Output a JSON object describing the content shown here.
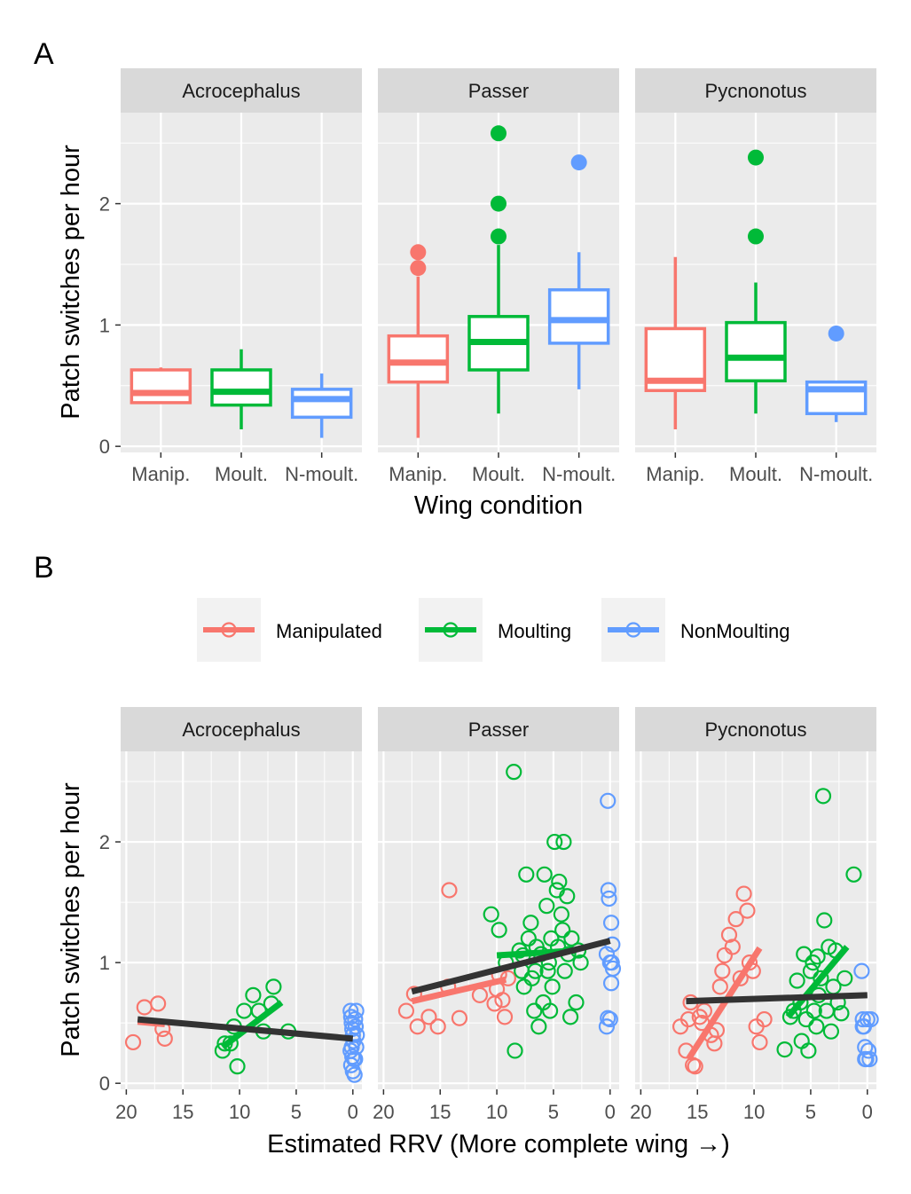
{
  "colors": {
    "Manipulated": "#F8766D",
    "Moulting": "#00BA38",
    "NonMoulting": "#619CFF",
    "overall": "#333333"
  },
  "tags": {
    "A": "A",
    "B": "B"
  },
  "facets": [
    "Acrocephalus",
    "Passer",
    "Pycnonotus"
  ],
  "legend": {
    "entries": [
      {
        "key": "Manipulated",
        "label": "Manipulated"
      },
      {
        "key": "Moulting",
        "label": "Moulting"
      },
      {
        "key": "NonMoulting",
        "label": "NonMoulting"
      }
    ]
  },
  "chart_data": [
    {
      "type": "box",
      "tag": "A",
      "xlabel": "Wing condition",
      "ylabel": "Patch switches per hour",
      "ylim": [
        -0.05,
        2.75
      ],
      "yticks": [
        0,
        1,
        2
      ],
      "categories": [
        "Manip.",
        "Moult.",
        "N-moult."
      ],
      "facets": [
        {
          "name": "Acrocephalus",
          "boxes": [
            {
              "group": "Manipulated",
              "min": 0.35,
              "q1": 0.36,
              "median": 0.44,
              "q3": 0.63,
              "max": 0.65,
              "outliers": []
            },
            {
              "group": "Moulting",
              "min": 0.14,
              "q1": 0.34,
              "median": 0.45,
              "q3": 0.63,
              "max": 0.8,
              "outliers": []
            },
            {
              "group": "NonMoulting",
              "min": 0.07,
              "q1": 0.24,
              "median": 0.39,
              "q3": 0.47,
              "max": 0.6,
              "outliers": []
            }
          ]
        },
        {
          "name": "Passer",
          "boxes": [
            {
              "group": "Manipulated",
              "min": 0.07,
              "q1": 0.53,
              "median": 0.69,
              "q3": 0.91,
              "max": 1.4,
              "outliers": [
                1.47,
                1.6
              ]
            },
            {
              "group": "Moulting",
              "min": 0.27,
              "q1": 0.63,
              "median": 0.86,
              "q3": 1.07,
              "max": 1.66,
              "outliers": [
                1.73,
                2.0,
                2.58
              ]
            },
            {
              "group": "NonMoulting",
              "min": 0.47,
              "q1": 0.85,
              "median": 1.04,
              "q3": 1.29,
              "max": 1.6,
              "outliers": [
                2.34
              ]
            }
          ]
        },
        {
          "name": "Pycnonotus",
          "boxes": [
            {
              "group": "Manipulated",
              "min": 0.14,
              "q1": 0.46,
              "median": 0.54,
              "q3": 0.97,
              "max": 1.56,
              "outliers": []
            },
            {
              "group": "Moulting",
              "min": 0.27,
              "q1": 0.54,
              "median": 0.73,
              "q3": 1.02,
              "max": 1.35,
              "outliers": [
                1.73,
                2.38
              ]
            },
            {
              "group": "NonMoulting",
              "min": 0.2,
              "q1": 0.27,
              "median": 0.47,
              "q3": 0.53,
              "max": 0.53,
              "outliers": [
                0.93
              ]
            }
          ]
        }
      ]
    },
    {
      "type": "scatter",
      "tag": "B",
      "xlabel": "Estimated RRV (More complete wing →)",
      "ylabel": "Patch switches per hour",
      "xlim": [
        20.5,
        -0.8
      ],
      "ylim": [
        -0.05,
        2.75
      ],
      "xticks": [
        20,
        15,
        10,
        5,
        0
      ],
      "yticks": [
        0,
        1,
        2
      ],
      "facets": [
        {
          "name": "Acrocephalus",
          "points": {
            "Manipulated": [
              [
                19.4,
                0.34
              ],
              [
                18.4,
                0.63
              ],
              [
                17.2,
                0.66
              ],
              [
                16.8,
                0.45
              ],
              [
                16.6,
                0.37
              ]
            ],
            "Moulting": [
              [
                11.5,
                0.27
              ],
              [
                11.3,
                0.33
              ],
              [
                10.8,
                0.33
              ],
              [
                10.5,
                0.47
              ],
              [
                10.2,
                0.14
              ],
              [
                9.6,
                0.6
              ],
              [
                8.8,
                0.73
              ],
              [
                8.3,
                0.6
              ],
              [
                7.9,
                0.43
              ],
              [
                7.2,
                0.66
              ],
              [
                7.0,
                0.8
              ],
              [
                5.7,
                0.43
              ]
            ],
            "NonMoulting": [
              [
                0.2,
                0.6
              ],
              [
                0.15,
                0.55
              ],
              [
                0.1,
                0.5
              ],
              [
                0.05,
                0.45
              ],
              [
                0.0,
                0.4
              ],
              [
                -0.05,
                0.35
              ],
              [
                0.1,
                0.3
              ],
              [
                0.2,
                0.27
              ],
              [
                0.05,
                0.22
              ],
              [
                -0.1,
                0.2
              ],
              [
                0.15,
                0.15
              ],
              [
                0.0,
                0.1
              ],
              [
                -0.15,
                0.07
              ],
              [
                -0.2,
                0.53
              ],
              [
                -0.3,
                0.6
              ],
              [
                -0.25,
                0.47
              ],
              [
                -0.35,
                0.4
              ],
              [
                -0.3,
                0.3
              ],
              [
                -0.2,
                0.2
              ]
            ]
          },
          "fits": {
            "Manipulated": [
              [
                19.0,
                0.51
              ],
              [
                16.6,
                0.49
              ]
            ],
            "Moulting": [
              [
                11.5,
                0.3
              ],
              [
                6.3,
                0.67
              ]
            ],
            "overall": [
              [
                19.0,
                0.53
              ],
              [
                0.0,
                0.37
              ]
            ]
          }
        },
        {
          "name": "Passer",
          "points": {
            "Manipulated": [
              [
                18.0,
                0.6
              ],
              [
                17.3,
                0.74
              ],
              [
                17.0,
                0.47
              ],
              [
                16.0,
                0.55
              ],
              [
                15.2,
                0.47
              ],
              [
                14.3,
                0.8
              ],
              [
                14.2,
                1.6
              ],
              [
                13.3,
                0.54
              ],
              [
                11.5,
                0.73
              ],
              [
                10.2,
                0.66
              ],
              [
                10.0,
                0.78
              ],
              [
                9.8,
                0.9
              ],
              [
                9.5,
                0.69
              ],
              [
                9.3,
                0.55
              ],
              [
                9.0,
                0.87
              ]
            ],
            "Moulting": [
              [
                10.5,
                1.4
              ],
              [
                9.8,
                1.27
              ],
              [
                9.2,
                1.0
              ],
              [
                8.5,
                2.58
              ],
              [
                8.4,
                0.27
              ],
              [
                8.0,
                1.1
              ],
              [
                7.8,
                0.93
              ],
              [
                7.6,
                0.8
              ],
              [
                7.4,
                1.73
              ],
              [
                7.2,
                1.2
              ],
              [
                7.0,
                1.33
              ],
              [
                6.9,
                0.87
              ],
              [
                6.7,
                0.6
              ],
              [
                6.5,
                1.13
              ],
              [
                6.3,
                0.47
              ],
              [
                6.1,
                1.07
              ],
              [
                5.9,
                0.67
              ],
              [
                5.8,
                1.73
              ],
              [
                5.6,
                1.47
              ],
              [
                5.5,
                0.93
              ],
              [
                5.4,
                1.0
              ],
              [
                5.2,
                1.2
              ],
              [
                5.1,
                0.8
              ],
              [
                4.9,
                2.0
              ],
              [
                4.7,
                1.6
              ],
              [
                4.6,
                1.13
              ],
              [
                4.5,
                1.67
              ],
              [
                4.3,
                1.4
              ],
              [
                4.2,
                1.27
              ],
              [
                4.1,
                2.0
              ],
              [
                4.0,
                0.93
              ],
              [
                3.8,
                1.55
              ],
              [
                3.7,
                1.07
              ],
              [
                3.5,
                0.55
              ],
              [
                3.4,
                1.2
              ],
              [
                3.0,
                0.67
              ],
              [
                2.8,
                1.1
              ],
              [
                2.6,
                1.0
              ],
              [
                6.6,
                0.93
              ],
              [
                7.7,
                1.06
              ],
              [
                5.3,
                0.6
              ]
            ],
            "NonMoulting": [
              [
                0.2,
                2.34
              ],
              [
                0.15,
                1.6
              ],
              [
                0.1,
                1.53
              ],
              [
                -0.1,
                1.33
              ],
              [
                -0.2,
                1.15
              ],
              [
                0.3,
                1.07
              ],
              [
                0.0,
                1.0
              ],
              [
                -0.25,
                0.95
              ],
              [
                -0.1,
                0.83
              ],
              [
                0.2,
                0.54
              ],
              [
                0.0,
                0.53
              ],
              [
                0.3,
                0.47
              ],
              [
                -0.15,
                1.0
              ]
            ]
          },
          "fits": {
            "Manipulated": [
              [
                17.5,
                0.68
              ],
              [
                9.2,
                0.86
              ]
            ],
            "Moulting": [
              [
                10.0,
                1.06
              ],
              [
                3.0,
                1.1
              ]
            ],
            "overall": [
              [
                17.5,
                0.76
              ],
              [
                0.0,
                1.18
              ]
            ]
          }
        },
        {
          "name": "Pycnonotus",
          "points": {
            "Manipulated": [
              [
                16.5,
                0.47
              ],
              [
                16.0,
                0.27
              ],
              [
                15.8,
                0.53
              ],
              [
                15.6,
                0.67
              ],
              [
                15.4,
                0.15
              ],
              [
                15.2,
                0.14
              ],
              [
                14.8,
                0.55
              ],
              [
                14.6,
                0.5
              ],
              [
                14.4,
                0.6
              ],
              [
                13.8,
                0.4
              ],
              [
                13.5,
                0.33
              ],
              [
                13.3,
                0.44
              ],
              [
                13.0,
                0.8
              ],
              [
                12.8,
                0.93
              ],
              [
                12.6,
                1.06
              ],
              [
                12.2,
                1.23
              ],
              [
                11.9,
                1.13
              ],
              [
                11.6,
                1.36
              ],
              [
                11.2,
                0.87
              ],
              [
                10.9,
                1.57
              ],
              [
                10.6,
                1.43
              ],
              [
                10.4,
                1.0
              ],
              [
                10.1,
                0.93
              ],
              [
                9.8,
                0.47
              ],
              [
                9.5,
                0.34
              ],
              [
                9.1,
                0.53
              ]
            ],
            "Moulting": [
              [
                7.3,
                0.28
              ],
              [
                6.8,
                0.55
              ],
              [
                6.5,
                0.6
              ],
              [
                6.2,
                0.85
              ],
              [
                5.9,
                0.67
              ],
              [
                5.6,
                1.07
              ],
              [
                5.4,
                0.53
              ],
              [
                5.2,
                0.27
              ],
              [
                5.0,
                0.93
              ],
              [
                4.8,
                1.0
              ],
              [
                4.7,
                0.6
              ],
              [
                4.5,
                0.47
              ],
              [
                4.3,
                0.73
              ],
              [
                4.1,
                0.87
              ],
              [
                3.9,
                2.38
              ],
              [
                3.8,
                1.35
              ],
              [
                3.6,
                0.6
              ],
              [
                3.4,
                1.13
              ],
              [
                3.2,
                0.43
              ],
              [
                3.0,
                0.8
              ],
              [
                2.8,
                1.1
              ],
              [
                2.6,
                0.67
              ],
              [
                2.3,
                0.58
              ],
              [
                2.0,
                0.87
              ],
              [
                1.2,
                1.73
              ],
              [
                5.8,
                0.35
              ],
              [
                4.4,
                1.05
              ]
            ],
            "NonMoulting": [
              [
                0.5,
                0.93
              ],
              [
                0.4,
                0.53
              ],
              [
                0.3,
                0.47
              ],
              [
                0.2,
                0.3
              ],
              [
                0.1,
                0.2
              ],
              [
                0.0,
                0.53
              ],
              [
                -0.1,
                0.27
              ],
              [
                -0.2,
                0.2
              ],
              [
                -0.3,
                0.53
              ],
              [
                0.2,
                0.2
              ],
              [
                0.4,
                0.47
              ]
            ]
          },
          "fits": {
            "Manipulated": [
              [
                15.8,
                0.2
              ],
              [
                9.5,
                1.12
              ]
            ],
            "Moulting": [
              [
                7.0,
                0.55
              ],
              [
                1.8,
                1.13
              ]
            ],
            "overall": [
              [
                16.0,
                0.68
              ],
              [
                0.0,
                0.73
              ]
            ]
          }
        }
      ]
    }
  ]
}
